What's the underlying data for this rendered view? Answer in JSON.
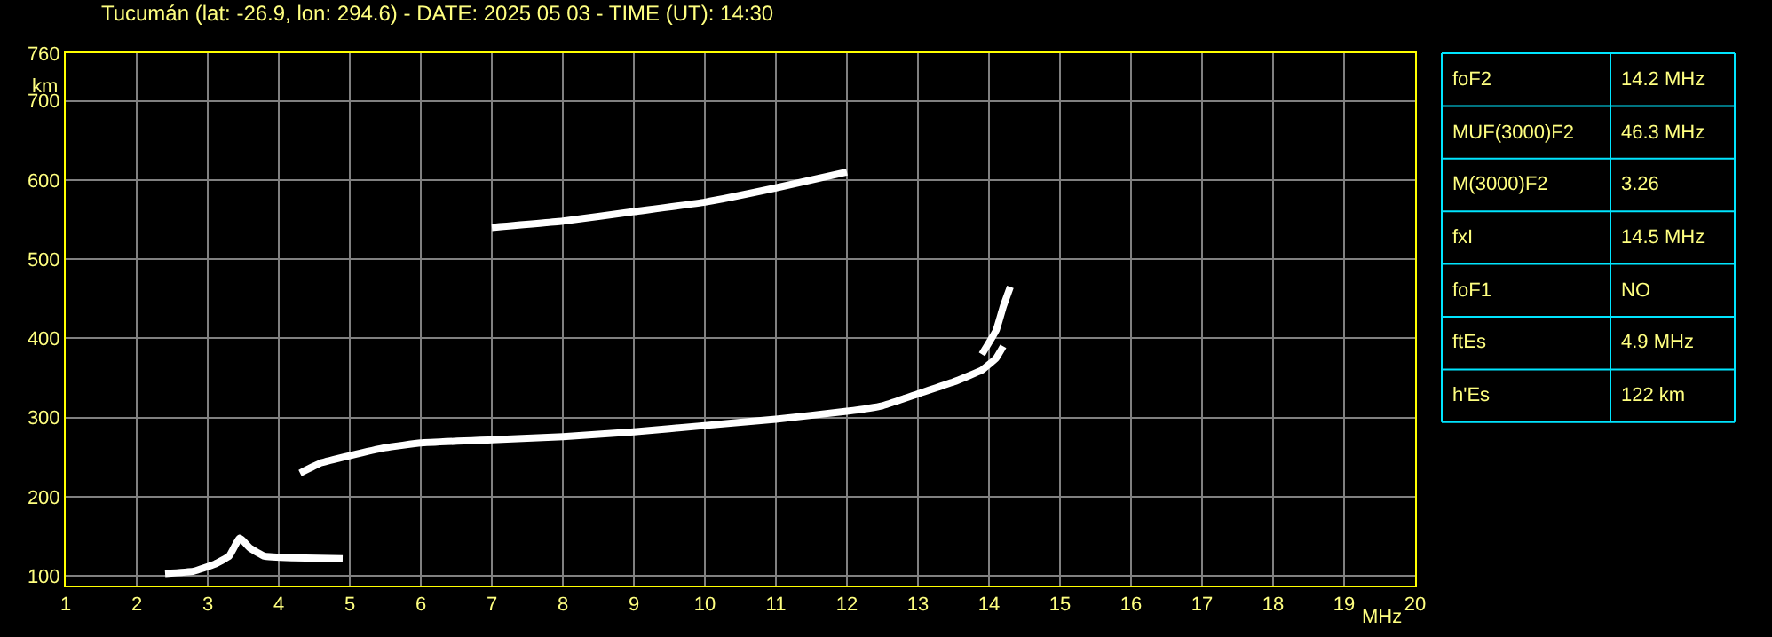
{
  "chart_data": [
    {
      "type": "line",
      "title": "Tucumán (lat: -26.9, lon: 294.6) - DATE: 2025 05 03 - TIME (UT): 14:30",
      "xlabel": "MHz",
      "ylabel": "km",
      "xlim": [
        1,
        20
      ],
      "xticks": [
        1,
        2,
        3,
        4,
        5,
        6,
        7,
        8,
        9,
        10,
        11,
        12,
        13,
        14,
        15,
        16,
        17,
        18,
        19,
        20
      ],
      "ylim": [
        88,
        760
      ],
      "yticks": [
        100,
        200,
        300,
        400,
        500,
        600,
        700,
        760
      ],
      "grid": true,
      "marker": "none",
      "line_style": "solid",
      "series": [
        {
          "color": "#ffffff",
          "x": [
            2.4,
            2.8,
            3.1,
            3.3,
            3.45,
            3.6,
            3.8,
            4.2,
            4.9
          ],
          "values": [
            103,
            106,
            115,
            125,
            148,
            135,
            125,
            123,
            122
          ]
        },
        {
          "color": "#ffffff",
          "x": [
            4.3,
            4.6,
            5,
            5.5,
            6,
            7,
            8,
            9,
            10,
            11,
            12,
            12.5,
            13,
            13.5,
            13.9,
            14.1,
            14.2
          ],
          "values": [
            230,
            243,
            252,
            262,
            268,
            272,
            276,
            282,
            290,
            298,
            308,
            315,
            330,
            345,
            360,
            375,
            390
          ]
        },
        {
          "color": "#ffffff",
          "x": [
            13.9,
            14.1,
            14.2,
            14.3
          ],
          "values": [
            380,
            410,
            440,
            465
          ]
        },
        {
          "color": "#ffffff",
          "x": [
            7,
            8,
            9,
            10,
            11,
            12
          ],
          "values": [
            540,
            548,
            560,
            572,
            590,
            610
          ]
        }
      ]
    },
    {
      "type": "other",
      "annotations": [
        "foF2",
        "14.2 MHz",
        "MUF(3000)F2",
        "46.3 MHz",
        "M(3000)F2",
        "3.26",
        "fxI",
        "14.5 MHz",
        "foF1",
        "NO",
        "ftEs",
        "4.9 MHz",
        "h'Es",
        "122 km"
      ]
    }
  ]
}
